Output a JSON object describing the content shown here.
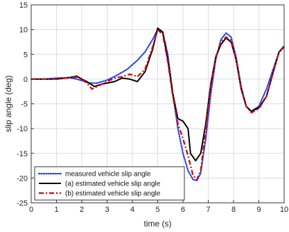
{
  "chart_data": {
    "type": "line",
    "xlabel": "time (s)",
    "ylabel": "slip angle (deg)",
    "xlim": [
      0,
      10
    ],
    "ylim": [
      -25,
      15
    ],
    "xticks": [
      0,
      1,
      2,
      3,
      4,
      5,
      6,
      7,
      8,
      9,
      10
    ],
    "yticks": [
      -25,
      -20,
      -15,
      -10,
      -5,
      0,
      5,
      10,
      15
    ],
    "grid": true,
    "legend_position": "bottom-left",
    "series": [
      {
        "name": "measured vehicle slip angle",
        "color": "#1f3fff",
        "style": "dotted",
        "x": [
          0,
          0.5,
          1.0,
          1.5,
          1.8,
          2.0,
          2.3,
          2.6,
          3.0,
          3.4,
          3.8,
          4.2,
          4.5,
          4.8,
          5.0,
          5.2,
          5.4,
          5.6,
          5.8,
          6.0,
          6.2,
          6.4,
          6.55,
          6.7,
          6.9,
          7.1,
          7.3,
          7.5,
          7.7,
          7.9,
          8.1,
          8.3,
          8.5,
          8.7,
          9.0,
          9.3,
          9.6,
          9.8,
          10.0
        ],
        "y": [
          0.0,
          0.0,
          0.2,
          0.3,
          0.0,
          -0.3,
          -0.8,
          -0.8,
          -0.2,
          0.8,
          2.0,
          3.8,
          5.5,
          8.0,
          10.0,
          9.5,
          5.0,
          -3.0,
          -10.0,
          -15.0,
          -18.5,
          -20.3,
          -20.5,
          -19.0,
          -12.0,
          -3.0,
          4.0,
          8.0,
          9.3,
          8.5,
          4.5,
          -1.5,
          -5.5,
          -6.5,
          -5.5,
          -2.0,
          2.5,
          5.5,
          6.5
        ]
      },
      {
        "name": "(a) estimated vehicle slip angle",
        "color": "#000000",
        "style": "solid",
        "x": [
          0,
          0.5,
          1.0,
          1.5,
          1.8,
          2.0,
          2.2,
          2.5,
          2.8,
          3.0,
          3.3,
          3.6,
          3.9,
          4.2,
          4.5,
          4.8,
          5.0,
          5.2,
          5.4,
          5.6,
          5.8,
          6.0,
          6.2,
          6.3,
          6.5,
          6.7,
          6.9,
          7.1,
          7.3,
          7.5,
          7.7,
          7.9,
          8.1,
          8.3,
          8.5,
          8.7,
          9.0,
          9.3,
          9.6,
          9.8,
          10.0
        ],
        "y": [
          0.0,
          0.0,
          0.0,
          0.3,
          0.6,
          0.0,
          -0.5,
          -1.5,
          -1.0,
          -0.8,
          -0.5,
          0.2,
          0.0,
          -0.5,
          1.5,
          6.0,
          10.3,
          9.5,
          4.0,
          -3.0,
          -8.0,
          -8.5,
          -10.0,
          -15.0,
          -16.5,
          -15.0,
          -9.0,
          -1.0,
          4.5,
          7.0,
          8.3,
          7.5,
          4.0,
          -2.0,
          -5.5,
          -6.5,
          -5.8,
          -3.5,
          2.0,
          5.5,
          6.5
        ]
      },
      {
        "name": "(b) estimated vehicle slip angle",
        "color": "#e00000",
        "style": "dashdot",
        "x": [
          0,
          0.5,
          1.0,
          1.5,
          1.8,
          2.0,
          2.2,
          2.4,
          2.6,
          2.8,
          3.0,
          3.3,
          3.6,
          3.9,
          4.2,
          4.5,
          4.8,
          5.0,
          5.2,
          5.4,
          5.6,
          5.8,
          6.0,
          6.2,
          6.4,
          6.55,
          6.7,
          6.9,
          7.1,
          7.3,
          7.5,
          7.7,
          7.9,
          8.1,
          8.3,
          8.5,
          8.7,
          9.0,
          9.3,
          9.6,
          9.8,
          10.0
        ],
        "y": [
          0.0,
          0.0,
          0.0,
          0.3,
          0.4,
          0.0,
          -0.8,
          -2.0,
          -1.5,
          -1.0,
          -0.5,
          0.2,
          0.5,
          1.0,
          0.5,
          2.0,
          6.5,
          10.0,
          9.0,
          3.5,
          -3.5,
          -9.0,
          -12.0,
          -15.5,
          -19.5,
          -20.3,
          -18.5,
          -10.0,
          -1.5,
          4.5,
          7.5,
          8.5,
          7.8,
          4.0,
          -2.0,
          -5.5,
          -6.8,
          -6.0,
          -3.5,
          2.0,
          5.5,
          6.7
        ]
      }
    ]
  }
}
